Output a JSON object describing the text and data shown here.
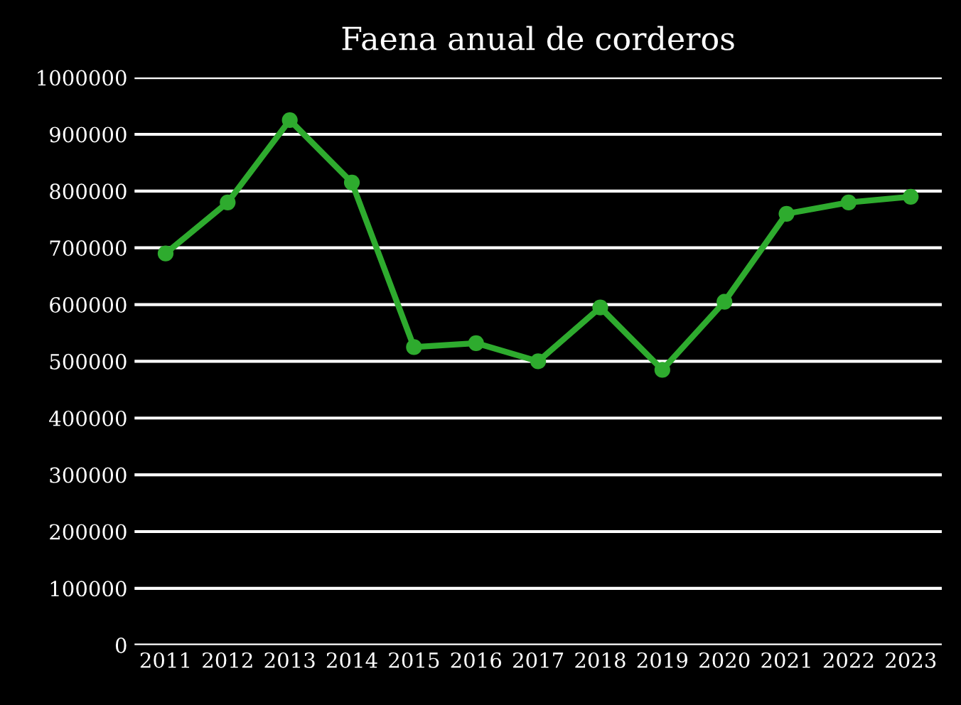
{
  "chart_data": {
    "type": "line",
    "title": "Faena anual de corderos",
    "categories": [
      "2011",
      "2012",
      "2013",
      "2014",
      "2015",
      "2016",
      "2017",
      "2018",
      "2019",
      "2020",
      "2021",
      "2022",
      "2023"
    ],
    "values": [
      690000,
      780000,
      925000,
      815000,
      525000,
      532000,
      500000,
      595000,
      485000,
      605000,
      760000,
      780000,
      790000
    ],
    "color": "#2eab2e",
    "marker": "circle",
    "ylim": [
      0,
      1000000
    ],
    "yticks": [
      0,
      100000,
      200000,
      300000,
      400000,
      500000,
      600000,
      700000,
      800000,
      900000,
      1000000
    ],
    "grid": "y"
  }
}
